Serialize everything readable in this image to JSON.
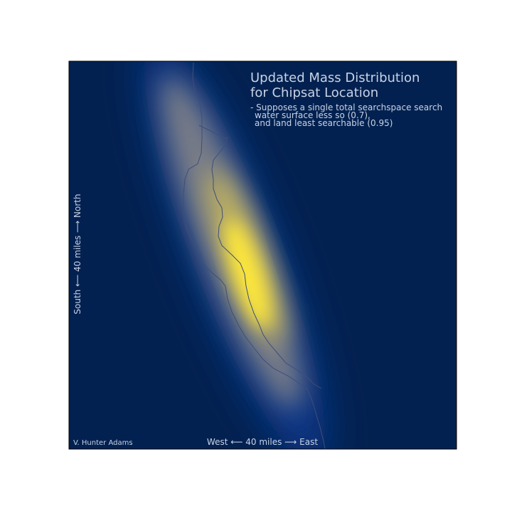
{
  "title": {
    "line1": "Updated Mass Distribution",
    "line2": "for Chipsat Location"
  },
  "note": {
    "line1": "- Supposes a single total searchspace search",
    "line2": "water surface less so (0.7),",
    "line3": "and land least searchable (0.95)"
  },
  "axes": {
    "x_label": "West ⟵  40 miles  ⟶ East",
    "y_label": "South  ⟵  40 miles  ⟶ North"
  },
  "credit": "V. Hunter Adams",
  "colors": {
    "background": "#032150",
    "mid": "#7c7f86",
    "peak": "#fde73a",
    "coastline": "#3d4f7a"
  }
}
